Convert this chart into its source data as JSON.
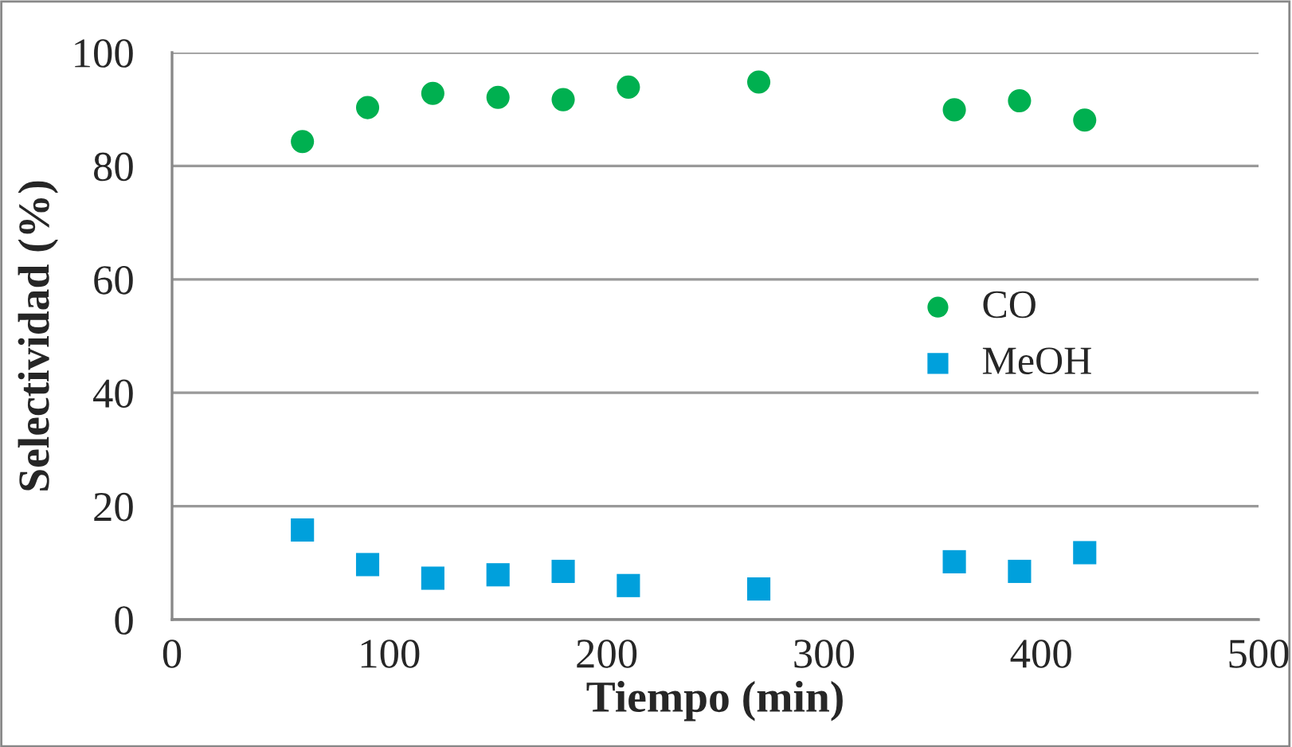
{
  "chart_data": {
    "type": "scatter",
    "xlabel": "Tiempo (min)",
    "ylabel": "Selectividad (%)",
    "x": [
      60,
      90,
      120,
      150,
      180,
      210,
      270,
      360,
      390,
      420
    ],
    "series": [
      {
        "name": "CO",
        "color": "#00b050",
        "marker": "circle",
        "values": [
          84.3,
          90.3,
          92.8,
          92.1,
          91.7,
          93.9,
          94.8,
          89.9,
          91.5,
          88.1
        ]
      },
      {
        "name": "MeOH",
        "color": "#00a0dc",
        "marker": "square",
        "values": [
          15.8,
          9.7,
          7.3,
          7.9,
          8.5,
          6.0,
          5.4,
          10.2,
          8.5,
          11.8
        ]
      }
    ],
    "xlim": [
      0,
      500
    ],
    "xticks": [
      0,
      100,
      200,
      300,
      400,
      500
    ],
    "ylim": [
      0,
      100
    ],
    "yticks": [
      0,
      20,
      40,
      60,
      80,
      100
    ],
    "grid": "y",
    "legend": "right"
  }
}
